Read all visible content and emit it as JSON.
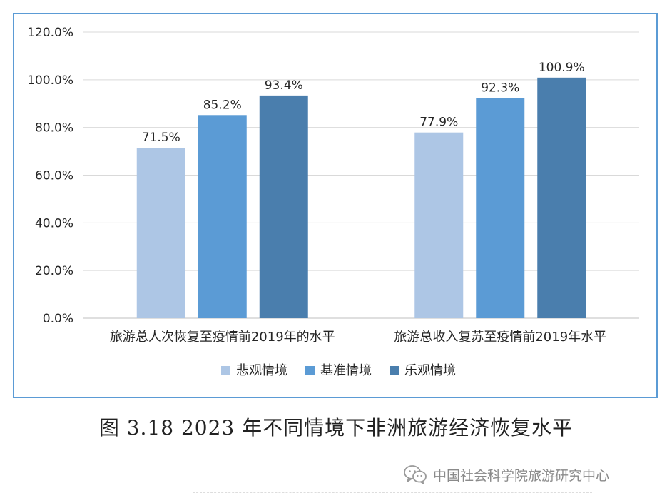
{
  "chart_data": {
    "type": "bar",
    "categories": [
      "旅游总人次恢复至疫情前2019年的水平",
      "旅游总收入复苏至疫情前2019年水平"
    ],
    "series": [
      {
        "name": "悲观情境",
        "values": [
          71.5,
          77.9
        ],
        "labels": [
          "71.5%",
          "77.9%"
        ],
        "color": "#adc6e5"
      },
      {
        "name": "基准情境",
        "values": [
          85.2,
          92.3
        ],
        "labels": [
          "85.2%",
          "92.3%"
        ],
        "color": "#5b9bd5"
      },
      {
        "name": "乐观情境",
        "values": [
          93.4,
          100.9
        ],
        "labels": [
          "93.4%",
          "100.9%"
        ],
        "color": "#4a7ead"
      }
    ],
    "yticks": [
      "0.0%",
      "20.0%",
      "40.0%",
      "60.0%",
      "80.0%",
      "100.0%",
      "120.0%"
    ],
    "ylim": [
      0,
      120
    ],
    "grid": true,
    "legend": "bottom",
    "border_color": "#5b9bd5"
  },
  "caption": "图 3.18 2023 年不同情境下非洲旅游经济恢复水平",
  "watermark": {
    "text": "中国社会科学院旅游研究中心",
    "icon": "wechat-icon"
  }
}
